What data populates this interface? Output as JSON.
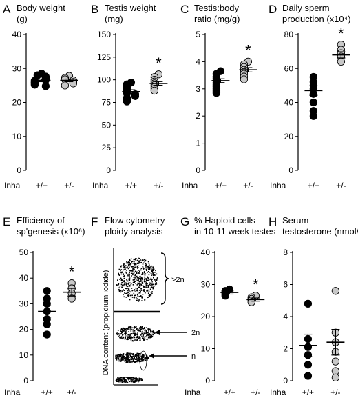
{
  "colors": {
    "wt_fill": "#000000",
    "het_fill": "#c8c8c8",
    "marker_stroke": "#000000"
  },
  "chart_data": [
    {
      "id": "A",
      "type": "scatter",
      "panel_label": "A",
      "title_lines": [
        "Body weight",
        "(g)"
      ],
      "ylim": [
        0,
        40
      ],
      "yticks": [
        "0",
        "10",
        "20",
        "30",
        "40"
      ],
      "x_prefix": "Inha",
      "categories": [
        "+/+",
        "+/-"
      ],
      "significant": [
        false,
        false
      ],
      "groups": [
        {
          "label": "+/+",
          "values": [
            28.5,
            28.0,
            27.6,
            27.2,
            26.8,
            26.6,
            26.4,
            26.0,
            25.8,
            25.5,
            25.2,
            24.8
          ],
          "mean": 26.5,
          "sem": 0.4
        },
        {
          "label": "+/-",
          "values": [
            27.8,
            27.2,
            26.8,
            26.5,
            26.0,
            25.6,
            25.0
          ],
          "mean": 26.5,
          "sem": 0.4
        }
      ]
    },
    {
      "id": "B",
      "type": "scatter",
      "panel_label": "B",
      "title_lines": [
        "Testis weight",
        "(mg)"
      ],
      "ylim": [
        0,
        150
      ],
      "yticks": [
        "0",
        "25",
        "50",
        "75",
        "100",
        "125",
        "150"
      ],
      "x_prefix": "Inha",
      "categories": [
        "+/+",
        "+/-"
      ],
      "significant": [
        false,
        true
      ],
      "sig_symbol": "*",
      "groups": [
        {
          "label": "+/+",
          "values": [
            97,
            95,
            93,
            91,
            89,
            87,
            85,
            84,
            82,
            80,
            78,
            76
          ],
          "mean": 87,
          "sem": 2.0
        },
        {
          "label": "+/-",
          "values": [
            106,
            103,
            100,
            98,
            96,
            94,
            92,
            90,
            88
          ],
          "mean": 96,
          "sem": 2.0
        }
      ]
    },
    {
      "id": "C",
      "type": "scatter",
      "panel_label": "C",
      "title_lines": [
        "Testis:body",
        "ratio (mg/g)"
      ],
      "ylim": [
        0,
        5
      ],
      "yticks": [
        "0",
        "1",
        "2",
        "3",
        "4",
        "5"
      ],
      "x_prefix": "Inha",
      "categories": [
        "+/+",
        "+/-"
      ],
      "significant": [
        false,
        true
      ],
      "sig_symbol": "*",
      "groups": [
        {
          "label": "+/+",
          "values": [
            3.65,
            3.55,
            3.45,
            3.38,
            3.3,
            3.22,
            3.15,
            3.08,
            3.0,
            2.92,
            2.85
          ],
          "mean": 3.3,
          "sem": 0.07
        },
        {
          "label": "+/-",
          "values": [
            4.0,
            3.9,
            3.8,
            3.7,
            3.62,
            3.55,
            3.45,
            3.35
          ],
          "mean": 3.7,
          "sem": 0.08
        }
      ]
    },
    {
      "id": "D",
      "type": "scatter",
      "panel_label": "D",
      "title_lines": [
        "Daily sperm",
        "production (x10⁴)"
      ],
      "ylim": [
        0,
        80
      ],
      "yticks": [
        "0",
        "20",
        "40",
        "60",
        "80"
      ],
      "x_prefix": "Inha",
      "categories": [
        "+/+",
        "+/-"
      ],
      "significant": [
        false,
        true
      ],
      "sig_symbol": "*",
      "groups": [
        {
          "label": "+/+",
          "values": [
            55,
            52,
            50,
            48,
            45,
            40,
            35,
            32
          ],
          "mean": 47,
          "sem": 2.8
        },
        {
          "label": "+/-",
          "values": [
            74,
            71,
            69,
            67,
            64
          ],
          "mean": 68,
          "sem": 1.8
        }
      ]
    },
    {
      "id": "E",
      "type": "scatter",
      "panel_label": "E",
      "title_lines": [
        "Efficiency of",
        "sp'genesis (x10⁶)"
      ],
      "ylim": [
        0,
        50
      ],
      "yticks": [
        "0",
        "10",
        "20",
        "30",
        "40",
        "50"
      ],
      "x_prefix": "Inha",
      "categories": [
        "+/+",
        "+/-"
      ],
      "significant": [
        false,
        true
      ],
      "sig_symbol": "*",
      "groups": [
        {
          "label": "+/+",
          "values": [
            35,
            32,
            30,
            27,
            24,
            22,
            18
          ],
          "mean": 27,
          "sem": 2.2
        },
        {
          "label": "+/-",
          "values": [
            38,
            36,
            34,
            32
          ],
          "mean": 34.5,
          "sem": 1.5
        }
      ]
    },
    {
      "id": "F",
      "type": "scatter",
      "panel_label": "F",
      "title_lines": [
        "Flow cytometry",
        "ploidy analysis"
      ],
      "ylabel": "DNA content (propidium iodide)",
      "annotations": [
        ">2n",
        "2n",
        "n"
      ]
    },
    {
      "id": "G",
      "type": "scatter",
      "panel_label": "G",
      "title_lines": [
        "% Haploid cells",
        "in 10-11 week testes"
      ],
      "ylim": [
        0,
        40
      ],
      "yticks": [
        "0",
        "10",
        "20",
        "30",
        "40"
      ],
      "x_prefix": "Inha",
      "categories": [
        "+/+",
        "+/-"
      ],
      "significant": [
        false,
        true
      ],
      "sig_symbol": "*",
      "groups": [
        {
          "label": "+/+",
          "values": [
            28.5,
            28.0,
            27.5,
            27.0,
            26.5
          ],
          "mean": 27.5,
          "sem": 0.5
        },
        {
          "label": "+/-",
          "values": [
            26.5,
            26.0,
            25.5,
            25.0,
            24.5
          ],
          "mean": 25.3,
          "sem": 0.5
        }
      ]
    },
    {
      "id": "H",
      "type": "scatter",
      "panel_label": "H",
      "title_lines": [
        "Serum",
        "testosterone (nmol/l)"
      ],
      "ylim": [
        0,
        8
      ],
      "yticks": [
        "0",
        "2",
        "4",
        "6",
        "8"
      ],
      "x_prefix": "Inha",
      "categories": [
        "+/+",
        "+/-"
      ],
      "significant": [
        false,
        false
      ],
      "groups": [
        {
          "label": "+/+",
          "values": [
            4.8,
            2.6,
            2.1,
            1.6,
            1.0,
            0.3
          ],
          "mean": 2.2,
          "sem": 0.7
        },
        {
          "label": "+/-",
          "values": [
            5.6,
            3.0,
            2.4,
            1.8,
            1.2,
            0.6,
            0.2
          ],
          "mean": 2.4,
          "sem": 0.8
        }
      ]
    }
  ]
}
